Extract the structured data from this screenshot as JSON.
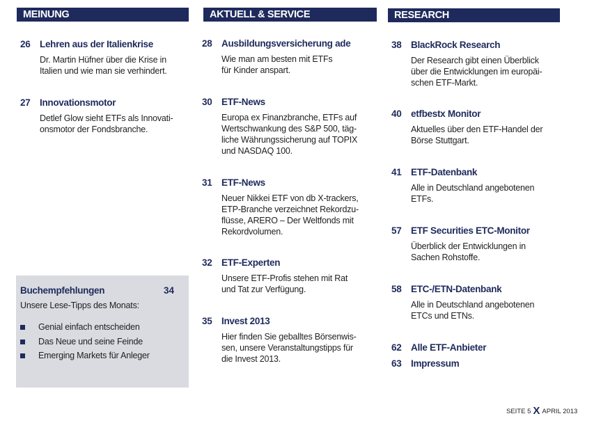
{
  "colors": {
    "header_bg": "#1f2a5c",
    "accent": "#1f2a5c",
    "box_bg": "#d9dbe0"
  },
  "columns": [
    {
      "header": "MEINUNG",
      "entries": [
        {
          "page": "26",
          "title": "Lehren aus der Italienkrise",
          "body": [
            "Dr. Martin Hüfner über die Krise in",
            "Italien und wie man sie verhindert."
          ]
        },
        {
          "page": "27",
          "title": "Innovationsmotor",
          "body": [
            "Detlef Glow sieht ETFs als Innovati-",
            "onsmotor der Fondsbranche."
          ]
        }
      ]
    },
    {
      "header": "AKTUELL & SERVICE",
      "entries": [
        {
          "page": "28",
          "title": "Ausbildungsversicherung ade",
          "body": [
            "Wie man am besten mit ETFs",
            "für Kinder anspart."
          ]
        },
        {
          "page": "30",
          "title": "ETF-News",
          "body": [
            "Europa ex Finanzbranche, ETFs auf",
            "Wertschwankung des S&P 500, täg-",
            "liche Währungssicherung auf TOPIX",
            "und NASDAQ 100."
          ]
        },
        {
          "page": "31",
          "title": "ETF-News",
          "body": [
            "Neuer Nikkei ETF von db X-trackers,",
            "ETP-Branche verzeichnet Rekordzu-",
            "flüsse, ARERO – Der Weltfonds mit",
            "Rekordvolumen."
          ]
        },
        {
          "page": "32",
          "title": "ETF-Experten",
          "body": [
            "Unsere ETF-Profis stehen mit Rat",
            "und Tat zur Verfügung."
          ]
        },
        {
          "page": "35",
          "title": "Invest 2013",
          "body": [
            "Hier finden Sie geballtes Börsenwis-",
            "sen, unsere Veranstaltungstipps für",
            "die Invest 2013."
          ]
        }
      ]
    },
    {
      "header": "RESEARCH",
      "entries": [
        {
          "page": "38",
          "title": "BlackRock Research",
          "body": [
            "Der Research gibt einen Überblick",
            "über die Entwicklungen im europäi-",
            "schen ETF-Markt."
          ]
        },
        {
          "page": "40",
          "title": "etfbestx Monitor",
          "body": [
            "Aktuelles über den ETF-Handel der",
            "Börse Stuttgart."
          ]
        },
        {
          "page": "41",
          "title": "ETF-Datenbank",
          "body": [
            "Alle in Deutschland angebotenen",
            "ETFs."
          ]
        },
        {
          "page": "57",
          "title": "ETF Securities ETC-Monitor",
          "body": [
            "Überblick der Entwicklungen in",
            "Sachen Rohstoffe."
          ]
        },
        {
          "page": "58",
          "title": "ETC-/ETN-Datenbank",
          "body": [
            "Alle in Deutschland angebotenen",
            "ETCs und ETNs."
          ]
        },
        {
          "page": "62",
          "title": "Alle ETF-Anbieter",
          "body": []
        },
        {
          "page": "63",
          "title": "Impressum",
          "body": []
        }
      ]
    }
  ],
  "book_box": {
    "title": "Buchempfehlungen",
    "page": "34",
    "subtitle": "Unsere Lese-Tipps des Monats:",
    "items": [
      "Genial einfach entscheiden",
      "Das Neue und seine Feinde",
      "Emerging Markets für Anleger"
    ]
  },
  "footer": {
    "page_label": "SEITE 5",
    "logo_mark": "X",
    "issue": "APRIL 2013"
  }
}
